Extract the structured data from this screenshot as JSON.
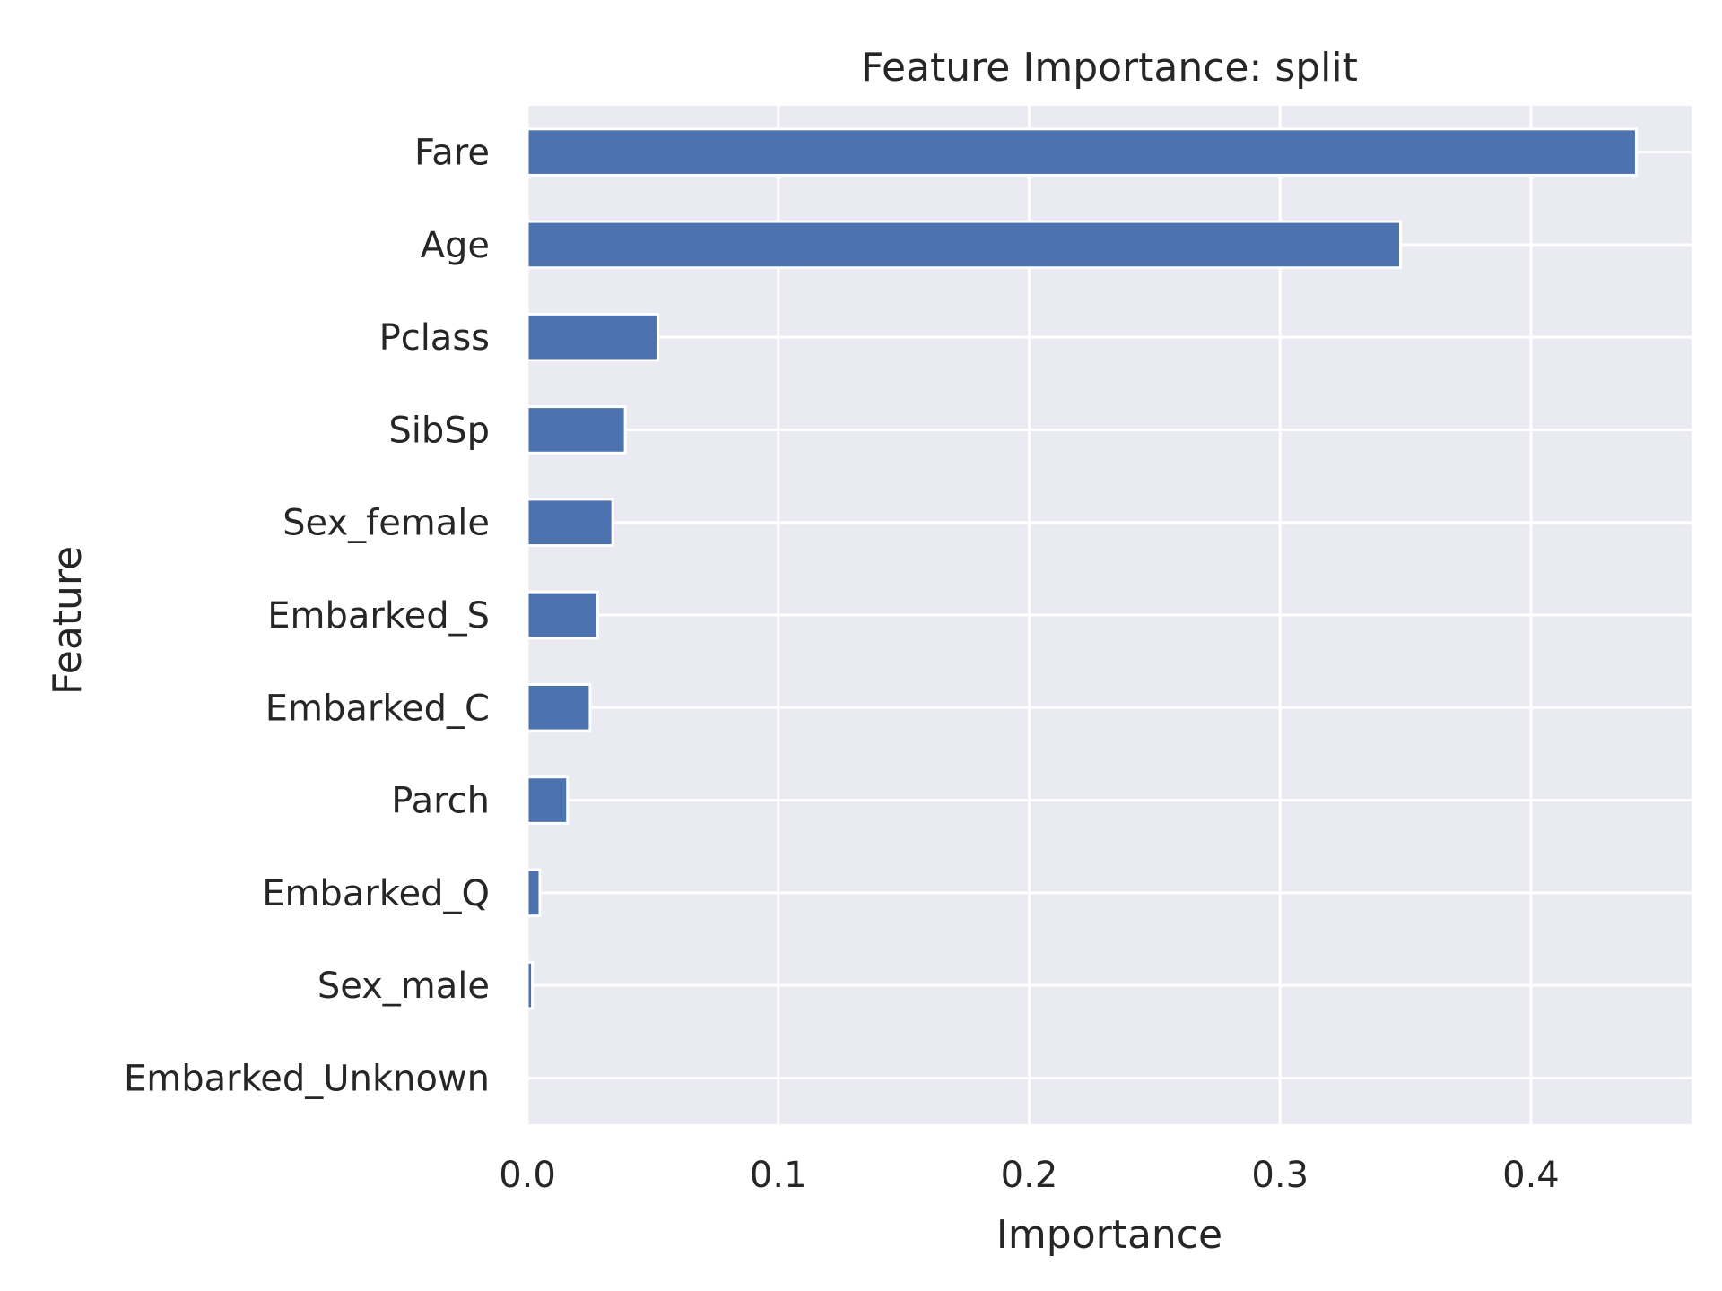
{
  "chart_data": {
    "type": "bar",
    "orientation": "horizontal",
    "title": "Feature Importance: split",
    "xlabel": "Importance",
    "ylabel": "Feature",
    "categories": [
      "Fare",
      "Age",
      "Pclass",
      "SibSp",
      "Sex_female",
      "Embarked_S",
      "Embarked_C",
      "Parch",
      "Embarked_Q",
      "Sex_male",
      "Embarked_Unknown"
    ],
    "values": [
      0.442,
      0.348,
      0.052,
      0.039,
      0.034,
      0.028,
      0.025,
      0.016,
      0.005,
      0.002,
      0.0
    ],
    "xlim": [
      0,
      0.464
    ],
    "xticks": [
      0.0,
      0.1,
      0.2,
      0.3,
      0.4
    ],
    "xtick_labels": [
      "0.0",
      "0.1",
      "0.2",
      "0.3",
      "0.4"
    ],
    "grid": true,
    "bar_color": "#4c72b0",
    "background_color": "#eaeaf2"
  }
}
